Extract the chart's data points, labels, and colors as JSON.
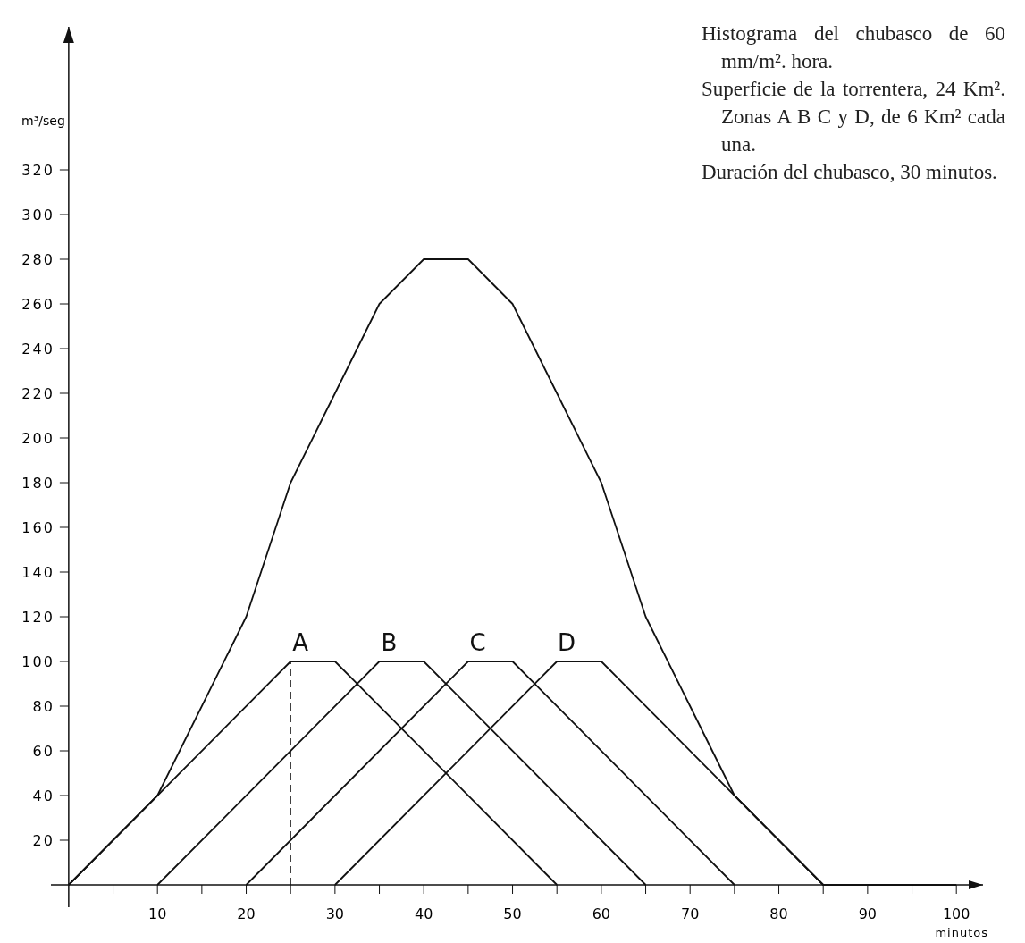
{
  "chart_data": {
    "type": "line",
    "xlabel": "minutos",
    "ylabel": "m³/seg",
    "annotations": [
      "Histograma del chubasco de 60 mm/m². hora.",
      "Superficie de la torrentera, 24 Km². Zonas A B C y D, de 6 Km² cada una.",
      "Duración del chubasco, 30 minutos."
    ],
    "xlim": [
      -2,
      103
    ],
    "ylim": [
      -10,
      384
    ],
    "xticks": [
      {
        "value": 5,
        "label": null
      },
      10,
      {
        "value": 15,
        "label": null
      },
      20,
      {
        "value": 25,
        "label": null
      },
      30,
      {
        "value": 35,
        "label": null
      },
      40,
      {
        "value": 45,
        "label": null
      },
      50,
      {
        "value": 55,
        "label": null
      },
      60,
      {
        "value": 65,
        "label": null
      },
      70,
      {
        "value": 75,
        "label": null
      },
      80,
      {
        "value": 85,
        "label": null
      },
      90,
      {
        "value": 95,
        "label": null
      },
      100
    ],
    "yticks": [
      20,
      40,
      60,
      80,
      100,
      120,
      140,
      160,
      180,
      200,
      220,
      240,
      260,
      280,
      300,
      320
    ],
    "grid": false,
    "legend": false,
    "marker": "none",
    "series": [
      {
        "color": "#111111",
        "x": [
          0,
          10,
          20,
          25,
          30,
          35,
          40,
          45,
          50,
          55,
          60,
          65,
          70,
          75,
          80,
          85,
          100
        ],
        "values": [
          0,
          40,
          120,
          180,
          220,
          260,
          280,
          280,
          260,
          220,
          180,
          120,
          80,
          40,
          20,
          0,
          0
        ]
      },
      {
        "name": "A",
        "color": "#111111",
        "x": [
          0,
          25,
          30,
          55
        ],
        "values": [
          0,
          100,
          100,
          0
        ]
      },
      {
        "name": "B",
        "color": "#111111",
        "x": [
          10,
          35,
          40,
          65
        ],
        "values": [
          0,
          100,
          100,
          0
        ]
      },
      {
        "name": "C",
        "color": "#111111",
        "x": [
          20,
          45,
          50,
          75
        ],
        "values": [
          0,
          100,
          100,
          0
        ]
      },
      {
        "name": "D",
        "color": "#111111",
        "x": [
          30,
          55,
          60,
          85
        ],
        "values": [
          0,
          100,
          100,
          0
        ]
      },
      {
        "color": "#111111",
        "line_style": "dashed",
        "x": [
          25,
          25
        ],
        "values": [
          0,
          100
        ]
      }
    ]
  }
}
